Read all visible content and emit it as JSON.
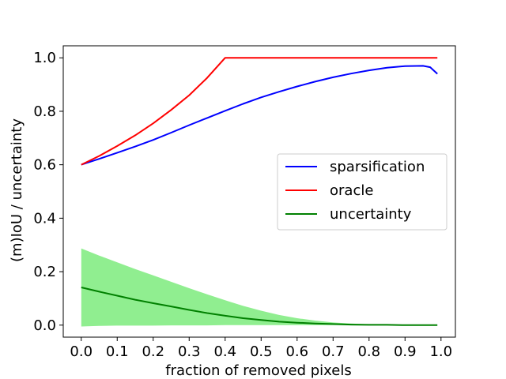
{
  "chart_data": {
    "type": "line",
    "title": "",
    "xlabel": "fraction of removed pixels",
    "ylabel": "(m)IoU / uncertainty",
    "xlim": [
      -0.05,
      1.04
    ],
    "ylim": [
      -0.045,
      1.045
    ],
    "xticks": [
      0.0,
      0.1,
      0.2,
      0.3,
      0.4,
      0.5,
      0.6,
      0.7,
      0.8,
      0.9,
      1.0
    ],
    "xtick_labels": [
      "0.0",
      "0.1",
      "0.2",
      "0.3",
      "0.4",
      "0.5",
      "0.6",
      "0.7",
      "0.8",
      "0.9",
      "1.0"
    ],
    "yticks": [
      0.0,
      0.2,
      0.4,
      0.6,
      0.8,
      1.0
    ],
    "ytick_labels": [
      "0.0",
      "0.2",
      "0.4",
      "0.6",
      "0.8",
      "1.0"
    ],
    "grid": false,
    "legend_position": "right",
    "x": [
      0.0,
      0.05,
      0.1,
      0.15,
      0.2,
      0.25,
      0.3,
      0.35,
      0.4,
      0.45,
      0.5,
      0.55,
      0.6,
      0.65,
      0.7,
      0.75,
      0.8,
      0.85,
      0.9,
      0.95,
      0.97,
      0.99
    ],
    "series": [
      {
        "name": "sparsification",
        "color": "#0000ff",
        "values": [
          0.6,
          0.622,
          0.645,
          0.668,
          0.693,
          0.72,
          0.748,
          0.775,
          0.802,
          0.828,
          0.852,
          0.873,
          0.893,
          0.911,
          0.927,
          0.941,
          0.953,
          0.963,
          0.969,
          0.97,
          0.965,
          0.94
        ]
      },
      {
        "name": "oracle",
        "color": "#ff0000",
        "values": [
          0.6,
          0.633,
          0.67,
          0.71,
          0.755,
          0.805,
          0.86,
          0.925,
          1.0,
          1.0,
          1.0,
          1.0,
          1.0,
          1.0,
          1.0,
          1.0,
          1.0,
          1.0,
          1.0,
          1.0,
          1.0,
          1.0
        ]
      },
      {
        "name": "uncertainty",
        "color": "#008000",
        "values": [
          0.141,
          0.125,
          0.11,
          0.095,
          0.082,
          0.07,
          0.057,
          0.045,
          0.035,
          0.026,
          0.019,
          0.013,
          0.009,
          0.006,
          0.004,
          0.002,
          0.001,
          0.001,
          0.0,
          0.0,
          0.0,
          0.0
        ]
      }
    ],
    "band": {
      "name": "uncertainty-range",
      "color": "#90ee90",
      "upper": [
        0.287,
        0.26,
        0.235,
        0.21,
        0.186,
        0.162,
        0.138,
        0.115,
        0.093,
        0.072,
        0.054,
        0.038,
        0.026,
        0.017,
        0.01,
        0.006,
        0.003,
        0.002,
        0.001,
        0.0,
        0.0,
        0.0
      ],
      "lower": [
        -0.005,
        -0.003,
        -0.002,
        -0.002,
        -0.002,
        -0.001,
        -0.001,
        -0.001,
        0.0,
        0.0,
        0.0,
        0.0,
        0.0,
        0.0,
        0.0,
        0.0,
        0.0,
        0.0,
        0.0,
        0.0,
        0.0,
        0.0
      ]
    },
    "legend": [
      "sparsification",
      "oracle",
      "uncertainty"
    ]
  }
}
